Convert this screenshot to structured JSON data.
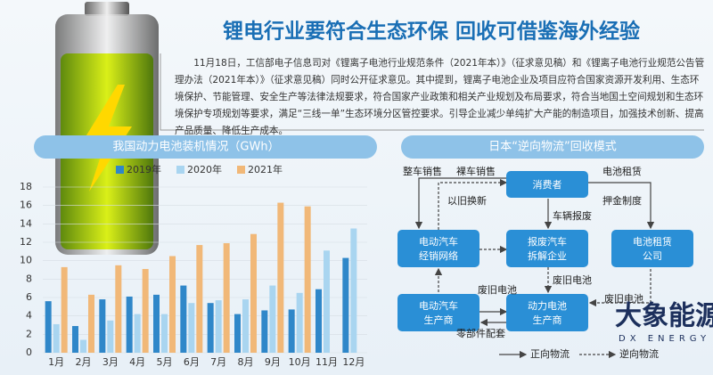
{
  "header": {
    "title": "锂电行业要符合生态环保 回收可借鉴海外经验"
  },
  "article": {
    "body": "11月18日，工信部电子信息司对《锂离子电池行业规范条件（2021年本）》（征求意见稿）和《锂离子电池行业规范公告管理办法（2021年本）》（征求意见稿）同时公开征求意见。其中提到，锂离子电池企业及项目应符合国家资源开发利用、生态环境保护、节能管理、安全生产等法律法规要求，符合国家产业政策和相关产业规划及布局要求，符合当地国土空间规划和生态环境保护专项规划等要求，满足“三线一单”生态环境分区管控要求。引导企业减少单纯扩大产能的制造项目，加强技术创新、提高产品质量、降低生产成本。"
  },
  "chart_data": {
    "type": "bar",
    "title": "我国动力电池装机情况（GWh）",
    "categories": [
      "1月",
      "2月",
      "3月",
      "4月",
      "5月",
      "6月",
      "7月",
      "8月",
      "9月",
      "10月",
      "11月",
      "12月"
    ],
    "series": [
      {
        "name": "2019年",
        "color": "#2f87c9",
        "values": [
          5.6,
          2.9,
          5.8,
          6.1,
          6.3,
          7.3,
          5.4,
          4.2,
          4.6,
          4.7,
          6.9,
          10.3
        ]
      },
      {
        "name": "2020年",
        "color": "#a9d5f0",
        "values": [
          3.1,
          1.4,
          3.5,
          4.2,
          4.2,
          5.4,
          5.7,
          5.8,
          7.3,
          6.5,
          11.1,
          13.5
        ]
      },
      {
        "name": "2021年",
        "color": "#f1b878",
        "values": [
          9.3,
          6.3,
          9.5,
          9.1,
          10.5,
          11.7,
          11.9,
          12.9,
          16.3,
          15.9,
          null,
          null
        ]
      }
    ],
    "ylim": [
      0,
      18
    ],
    "yticks": [
      0,
      2,
      4,
      6,
      8,
      10,
      12,
      14,
      16,
      18
    ],
    "grid": true
  },
  "diagram": {
    "title": "日本“逆向物流”回收模式",
    "nodes": [
      {
        "label": [
          "消费者"
        ]
      },
      {
        "label": [
          "电动汽车",
          "经销网络"
        ]
      },
      {
        "label": [
          "报废汽车",
          "拆解企业"
        ]
      },
      {
        "label": [
          "电池租赁",
          "公司"
        ]
      },
      {
        "label": [
          "电动汽车",
          "生产商"
        ]
      },
      {
        "label": [
          "动力电池",
          "生产商"
        ]
      }
    ],
    "edges": [
      "整车销售",
      "裸车销售",
      "以旧换新",
      "电池租赁",
      "押金制度",
      "车辆报废",
      "废旧电池",
      "废旧电池",
      "废旧电池",
      "零部件配套"
    ],
    "legend": [
      "正向物流",
      "逆向物流"
    ]
  },
  "logo": {
    "name": "大象能源",
    "subtitle": "DX ENERGY"
  }
}
